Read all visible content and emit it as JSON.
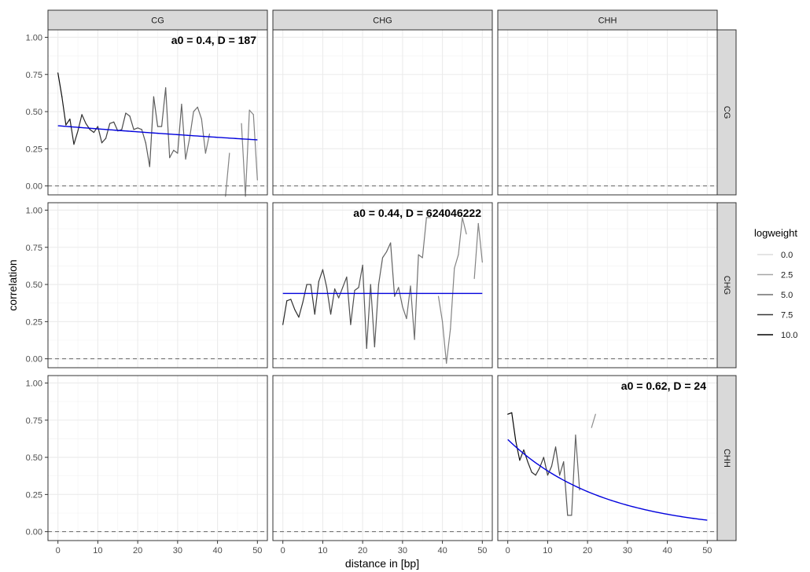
{
  "chart_data": {
    "type": "line",
    "xlabel": "distance in [bp]",
    "ylabel": "correlation",
    "xlim": [
      0,
      50
    ],
    "ylim": [
      0,
      1
    ],
    "x_ticks": [
      0,
      10,
      20,
      30,
      40,
      50
    ],
    "y_ticks": [
      0.0,
      0.25,
      0.5,
      0.75,
      1.0
    ],
    "y_tick_labels": [
      "0.00",
      "0.25",
      "0.50",
      "0.75",
      "1.00"
    ],
    "grid": true,
    "col_facets": [
      "CG",
      "CHG",
      "CHH"
    ],
    "row_facets": [
      "CG",
      "CHG",
      "CHH"
    ],
    "legend": {
      "title": "logweight",
      "position": "right",
      "entries": [
        {
          "label": "0.0",
          "weight": 0.0
        },
        {
          "label": "2.5",
          "weight": 2.5
        },
        {
          "label": "5.0",
          "weight": 5.0
        },
        {
          "label": "7.5",
          "weight": 7.5
        },
        {
          "label": "10.0",
          "weight": 10.0
        }
      ]
    },
    "colors": {
      "fit": "#0000dd",
      "zero_line": "#666666",
      "strip_bg": "#d9d9d9",
      "grid": "#ebebeb"
    },
    "panels": [
      {
        "row": 0,
        "col": 0,
        "annotation": "a0 = 0.4, D = 187",
        "fit": {
          "a0": 0.405,
          "D": 187
        },
        "segments": [
          {
            "x": [
              0,
              1,
              2,
              3,
              4,
              5,
              6,
              7,
              8,
              9,
              10,
              11,
              12,
              13,
              14,
              15,
              16,
              17,
              18,
              19,
              20,
              21,
              22,
              23,
              24,
              25,
              26,
              27,
              28,
              29,
              30,
              31,
              32,
              33,
              34,
              35,
              36,
              37,
              38
            ],
            "y": [
              0.76,
              0.6,
              0.41,
              0.45,
              0.28,
              0.37,
              0.48,
              0.42,
              0.38,
              0.36,
              0.4,
              0.29,
              0.32,
              0.42,
              0.43,
              0.37,
              0.38,
              0.49,
              0.47,
              0.38,
              0.39,
              0.38,
              0.29,
              0.13,
              0.6,
              0.4,
              0.4,
              0.66,
              0.19,
              0.24,
              0.22,
              0.55,
              0.18,
              0.32,
              0.5,
              0.53,
              0.45,
              0.22,
              0.35
            ],
            "w": [
              10,
              9,
              9,
              8.5,
              8.5,
              8,
              8,
              8,
              8,
              8,
              7.5,
              7.5,
              7.5,
              7,
              7,
              7,
              7,
              6.5,
              6.5,
              6.5,
              6.5,
              6,
              6,
              6,
              6,
              6,
              6,
              5.5,
              5.5,
              5.5,
              5.5,
              5.5,
              5,
              5,
              5,
              5,
              5,
              4.5,
              4.5
            ]
          },
          {
            "x": [
              42,
              43
            ],
            "y": [
              -0.07,
              0.22
            ],
            "w": [
              4,
              4
            ]
          },
          {
            "x": [
              46,
              47,
              48,
              49,
              50
            ],
            "y": [
              0.42,
              -0.07,
              0.51,
              0.48,
              0.04
            ],
            "w": [
              4,
              4,
              4,
              4,
              4
            ]
          }
        ]
      },
      {
        "row": 1,
        "col": 1,
        "annotation": "a0 = 0.44, D = 624046222",
        "fit": {
          "a0": 0.44,
          "D": 624046222
        },
        "segments": [
          {
            "x": [
              0,
              1,
              2,
              3,
              4,
              5,
              6,
              7,
              8,
              9,
              10,
              11,
              12,
              13,
              14,
              15,
              16,
              17,
              18,
              19,
              20,
              21,
              22,
              23,
              24,
              25,
              26,
              27,
              28,
              29,
              30,
              31,
              32,
              33,
              34,
              35,
              36,
              37
            ],
            "y": [
              0.23,
              0.39,
              0.4,
              0.33,
              0.28,
              0.38,
              0.5,
              0.5,
              0.3,
              0.52,
              0.6,
              0.48,
              0.3,
              0.47,
              0.41,
              0.48,
              0.55,
              0.23,
              0.46,
              0.48,
              0.63,
              0.07,
              0.5,
              0.08,
              0.5,
              0.68,
              0.72,
              0.78,
              0.42,
              0.48,
              0.35,
              0.27,
              0.49,
              0.13,
              0.7,
              0.68,
              0.95,
              0.95
            ],
            "w": [
              8.5,
              8,
              8,
              8,
              8,
              7.5,
              7.5,
              7.5,
              7.5,
              7.5,
              7,
              7,
              7,
              7,
              7,
              6.5,
              6.5,
              6.5,
              6.5,
              6.5,
              6,
              6,
              6,
              6,
              6,
              5.5,
              5.5,
              5.5,
              5.5,
              5.5,
              5,
              5,
              5,
              5,
              5,
              4.5,
              4.5,
              4.5
            ]
          },
          {
            "x": [
              39,
              40,
              41,
              42,
              43,
              44,
              45,
              46
            ],
            "y": [
              0.42,
              0.25,
              -0.03,
              0.2,
              0.61,
              0.7,
              0.95,
              0.84
            ],
            "w": [
              4,
              4,
              4,
              4,
              4,
              4,
              4,
              4
            ]
          },
          {
            "x": [
              48,
              49,
              50
            ],
            "y": [
              0.54,
              0.91,
              0.65
            ],
            "w": [
              4,
              4,
              4
            ]
          }
        ]
      },
      {
        "row": 2,
        "col": 2,
        "annotation": "a0 = 0.62, D = 24",
        "fit": {
          "a0": 0.62,
          "D": 24
        },
        "segments": [
          {
            "x": [
              0,
              1,
              2,
              3,
              4,
              5,
              6,
              7,
              8,
              9,
              10,
              11,
              12,
              13,
              14,
              15,
              16,
              17,
              18
            ],
            "y": [
              0.79,
              0.8,
              0.61,
              0.48,
              0.55,
              0.47,
              0.4,
              0.38,
              0.43,
              0.5,
              0.38,
              0.44,
              0.57,
              0.38,
              0.47,
              0.11,
              0.11,
              0.65,
              0.28
            ],
            "w": [
              10,
              10,
              9.5,
              9,
              8.5,
              8.5,
              8,
              8,
              7.5,
              7.5,
              7,
              7,
              6.5,
              6.5,
              6,
              6,
              5.5,
              5.5,
              5
            ]
          },
          {
            "x": [
              21,
              22
            ],
            "y": [
              0.7,
              0.79
            ],
            "w": [
              3.5,
              3.5
            ]
          }
        ]
      }
    ]
  }
}
